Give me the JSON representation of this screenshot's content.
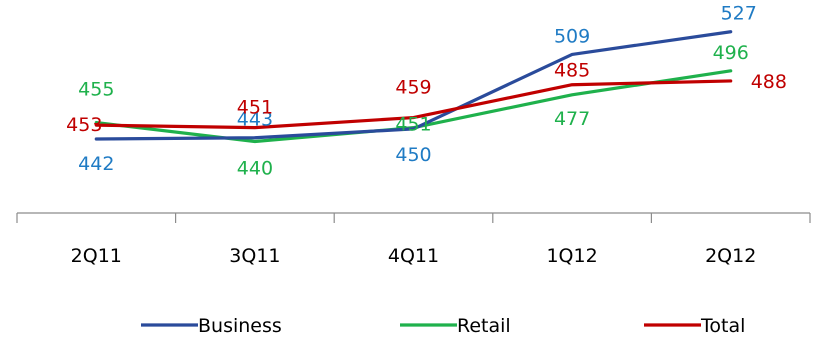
{
  "chart_data": {
    "type": "line",
    "categories": [
      "2Q11",
      "3Q11",
      "4Q11",
      "1Q12",
      "2Q12"
    ],
    "series": [
      {
        "name": "Business",
        "color": "#2a4b9b",
        "label_color": "#1f7bc4",
        "values": [
          442,
          443,
          450,
          509,
          527
        ]
      },
      {
        "name": "Retail",
        "color": "#1fb14c",
        "label_color": "#1fb14c",
        "values": [
          455,
          440,
          451,
          477,
          496
        ]
      },
      {
        "name": "Total",
        "color": "#c00000",
        "label_color": "#c00000",
        "values": [
          453,
          451,
          459,
          485,
          488
        ]
      }
    ],
    "legend": "bottom",
    "grid": false
  }
}
